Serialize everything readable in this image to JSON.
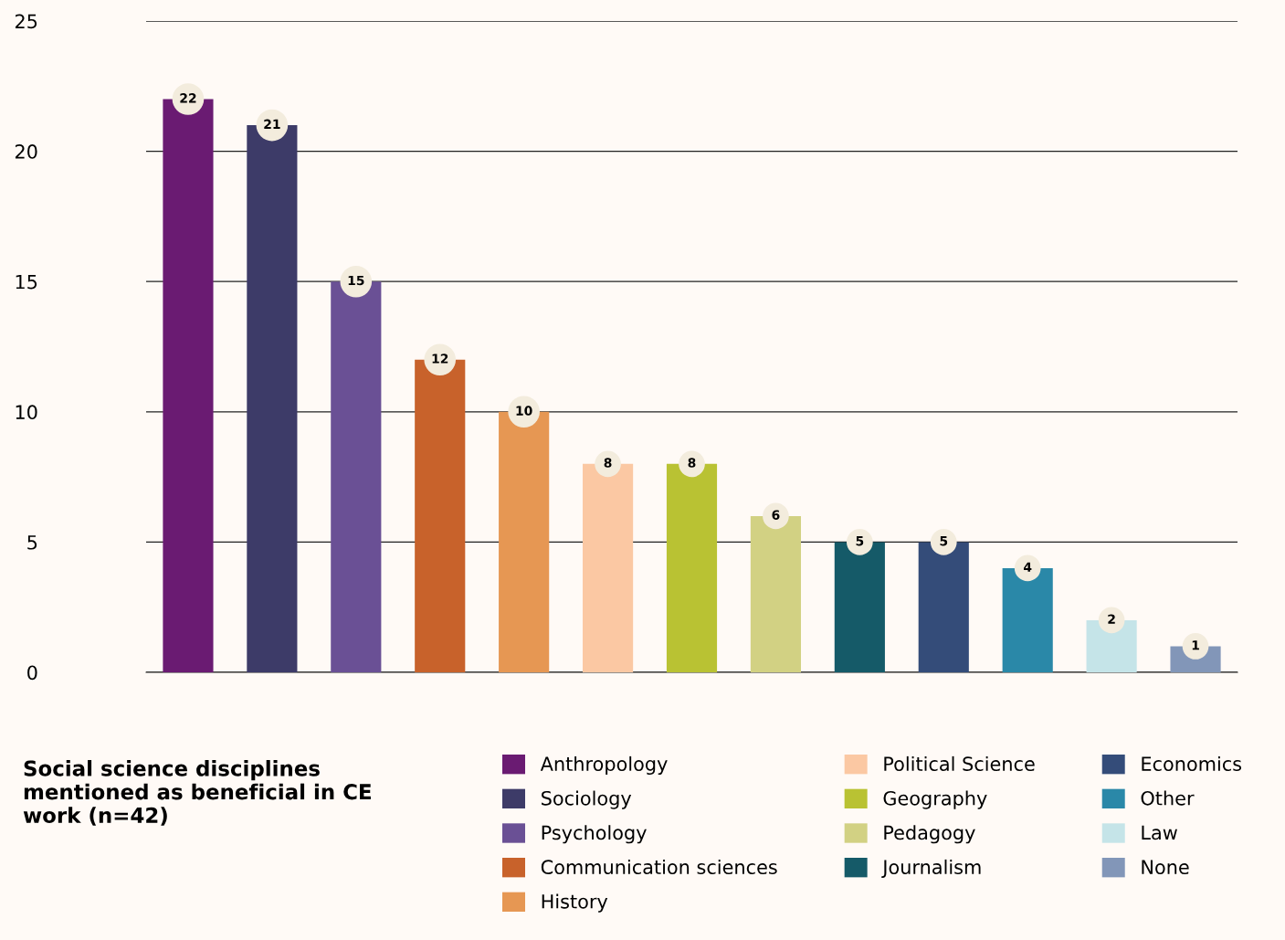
{
  "chart_data": {
    "type": "bar",
    "title": "Social science disciplines mentioned as beneficial in CE work (n=42)",
    "categories": [
      null,
      null,
      null,
      null,
      null,
      null,
      null,
      null,
      null,
      null,
      null,
      null,
      null
    ],
    "series": [
      {
        "name": "Anthropology",
        "color": "#6a1b72",
        "values": [
          22,
          null,
          null,
          null,
          null,
          null,
          null,
          null,
          null,
          null,
          null,
          null,
          null
        ]
      },
      {
        "name": "Sociology",
        "color": "#3d3b68",
        "values": [
          null,
          21,
          null,
          null,
          null,
          null,
          null,
          null,
          null,
          null,
          null,
          null,
          null
        ]
      },
      {
        "name": "Psychology",
        "color": "#6a5095",
        "values": [
          null,
          null,
          15,
          null,
          null,
          null,
          null,
          null,
          null,
          null,
          null,
          null,
          null
        ]
      },
      {
        "name": "Communication sciences",
        "color": "#c8622b",
        "values": [
          null,
          null,
          null,
          12,
          null,
          null,
          null,
          null,
          null,
          null,
          null,
          null,
          null
        ]
      },
      {
        "name": "History",
        "color": "#e69753",
        "values": [
          null,
          null,
          null,
          null,
          10,
          null,
          null,
          null,
          null,
          null,
          null,
          null,
          null
        ]
      },
      {
        "name": "Political Science",
        "color": "#fbc8a3",
        "values": [
          null,
          null,
          null,
          null,
          null,
          8,
          null,
          null,
          null,
          null,
          null,
          null,
          null
        ]
      },
      {
        "name": "Geography",
        "color": "#b9c233",
        "values": [
          null,
          null,
          null,
          null,
          null,
          null,
          8,
          null,
          null,
          null,
          null,
          null,
          null
        ]
      },
      {
        "name": "Pedagogy",
        "color": "#d2d183",
        "values": [
          null,
          null,
          null,
          null,
          null,
          null,
          null,
          6,
          null,
          null,
          null,
          null,
          null
        ]
      },
      {
        "name": "Journalism",
        "color": "#155a68",
        "values": [
          null,
          null,
          null,
          null,
          null,
          null,
          null,
          null,
          5,
          null,
          null,
          null,
          null
        ]
      },
      {
        "name": "Economics",
        "color": "#344c79",
        "values": [
          null,
          null,
          null,
          null,
          null,
          null,
          null,
          null,
          null,
          5,
          null,
          null,
          null
        ]
      },
      {
        "name": "Other",
        "color": "#2a88a8",
        "values": [
          null,
          null,
          null,
          null,
          null,
          null,
          null,
          null,
          null,
          null,
          4,
          null,
          null
        ]
      },
      {
        "name": "Law",
        "color": "#c5e4e8",
        "values": [
          null,
          null,
          null,
          null,
          null,
          null,
          null,
          null,
          null,
          null,
          null,
          2,
          null
        ]
      },
      {
        "name": "None",
        "color": "#8296b8",
        "values": [
          null,
          null,
          null,
          null,
          null,
          null,
          null,
          null,
          null,
          null,
          null,
          null,
          1
        ]
      }
    ],
    "ylim": [
      0,
      25
    ],
    "yticks": [
      0,
      5,
      10,
      15,
      20,
      25
    ],
    "stacked": true,
    "grid": "y",
    "legend": "bottom",
    "tick_labels": "y",
    "data_labels": true
  }
}
